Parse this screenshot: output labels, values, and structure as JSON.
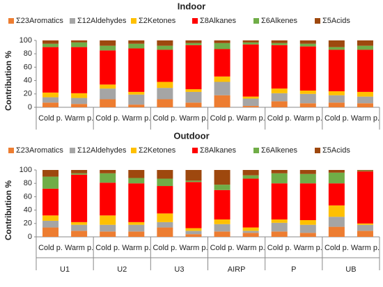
{
  "chart_data": [
    {
      "type": "stacked_bar",
      "title": "Indoor",
      "y_label": "Contribution %",
      "categories": [
        "Cold p.",
        "Warm p.",
        "Cold p.",
        "Warm p.",
        "Cold p.",
        "Warm p.",
        "Cold p.",
        "Warm p.",
        "Cold p.",
        "Warm p.",
        "Cold p.",
        "Warm p."
      ],
      "ylim": [
        0,
        100
      ],
      "yticks": [
        0,
        20,
        40,
        60,
        80,
        100
      ],
      "series": [
        {
          "name": "Σ23Aromatics",
          "color": "#ED7D31",
          "values": [
            7,
            5,
            12,
            4,
            12,
            7,
            18,
            2,
            9,
            6,
            7,
            6
          ]
        },
        {
          "name": "Σ12Aldehydes",
          "color": "#A5A5A5",
          "values": [
            8,
            9,
            16,
            15,
            17,
            16,
            20,
            11,
            12,
            14,
            11,
            10
          ]
        },
        {
          "name": "Σ2Ketones",
          "color": "#FFC000",
          "values": [
            7,
            7,
            6,
            4,
            9,
            4,
            8,
            3,
            7,
            5,
            6,
            7
          ]
        },
        {
          "name": "Σ8Alkanes",
          "color": "#FF0000",
          "values": [
            68,
            69,
            51,
            65,
            48,
            66,
            41,
            78,
            65,
            66,
            62,
            63
          ]
        },
        {
          "name": "Σ6Alkenes",
          "color": "#70AD47",
          "values": [
            5,
            7,
            7,
            7,
            6,
            3,
            9,
            3,
            3,
            4,
            4,
            6
          ]
        },
        {
          "name": "Σ5Acids",
          "color": "#9E480E",
          "values": [
            5,
            3,
            8,
            5,
            8,
            4,
            4,
            3,
            4,
            5,
            10,
            8
          ]
        }
      ]
    },
    {
      "type": "stacked_bar",
      "title": "Outdoor",
      "y_label": "Contribution %",
      "categories": [
        "Cold p.",
        "Warm p.",
        "Cold p.",
        "Warm p.",
        "Cold p.",
        "Warm p.",
        "Cold p.",
        "Warm p.",
        "Cold p.",
        "Warm p.",
        "Cold p.",
        "Warm p."
      ],
      "groups": [
        "U1",
        "U2",
        "U3",
        "AIRP",
        "P",
        "UB"
      ],
      "ylim": [
        0,
        100
      ],
      "yticks": [
        0,
        20,
        40,
        60,
        80,
        100
      ],
      "series": [
        {
          "name": "Σ23Aromatics",
          "color": "#ED7D31",
          "values": [
            14,
            9,
            8,
            8,
            14,
            4,
            8,
            6,
            8,
            6,
            15,
            9
          ]
        },
        {
          "name": "Σ12Aldehydes",
          "color": "#A5A5A5",
          "values": [
            10,
            9,
            10,
            10,
            8,
            5,
            11,
            3,
            13,
            12,
            15,
            9
          ]
        },
        {
          "name": "Σ2Ketones",
          "color": "#FFC000",
          "values": [
            8,
            4,
            14,
            4,
            13,
            4,
            7,
            5,
            5,
            7,
            17,
            2
          ]
        },
        {
          "name": "Σ8Alkanes",
          "color": "#FF0000",
          "values": [
            40,
            71,
            49,
            58,
            41,
            69,
            44,
            73,
            54,
            55,
            33,
            78
          ]
        },
        {
          "name": "Σ6Alkenes",
          "color": "#70AD47",
          "values": [
            18,
            2,
            14,
            8,
            11,
            2,
            8,
            5,
            15,
            14,
            16,
            1
          ]
        },
        {
          "name": "Σ5Acids",
          "color": "#9E480E",
          "values": [
            10,
            5,
            5,
            12,
            13,
            16,
            22,
            8,
            5,
            6,
            4,
            1
          ]
        }
      ]
    }
  ]
}
